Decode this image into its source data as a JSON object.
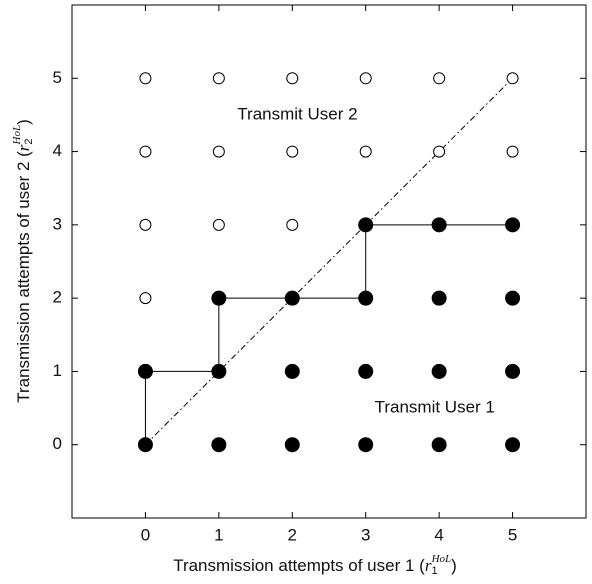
{
  "chart_data": {
    "type": "scatter",
    "xlabel": {
      "text": "Transmission attempts of user 1 (",
      "var": "r",
      "sub": "1",
      "sup": "HoL",
      "close": ")"
    },
    "ylabel": {
      "text": "Transmission attempts of user 2 (",
      "var": "r",
      "sub": "2",
      "sup": "HoL",
      "close": ")"
    },
    "xlim": [
      -1,
      6
    ],
    "ylim": [
      -1,
      6
    ],
    "xticks": [
      0,
      1,
      2,
      3,
      4,
      5
    ],
    "yticks": [
      0,
      1,
      2,
      3,
      4,
      5
    ],
    "series": [
      {
        "marker": "open",
        "color": "#000000",
        "x": [
          0,
          1,
          2,
          3,
          4,
          5,
          0,
          1,
          2,
          3,
          4,
          5,
          0,
          1,
          2,
          0
        ],
        "y": [
          5,
          5,
          5,
          5,
          5,
          5,
          4,
          4,
          4,
          4,
          4,
          4,
          3,
          3,
          3,
          2
        ]
      },
      {
        "marker": "filled",
        "color": "#000000",
        "x": [
          3,
          4,
          5,
          1,
          2,
          3,
          4,
          5,
          0,
          1,
          2,
          3,
          4,
          5,
          0,
          1,
          2,
          3,
          4,
          5
        ],
        "y": [
          3,
          3,
          3,
          2,
          2,
          2,
          2,
          2,
          1,
          1,
          1,
          1,
          1,
          1,
          0,
          0,
          0,
          0,
          0,
          0
        ]
      }
    ],
    "lines": [
      {
        "style": "dashdot",
        "x": [
          0,
          5
        ],
        "y": [
          0,
          5
        ]
      },
      {
        "style": "solid",
        "x": [
          0,
          0,
          1,
          1,
          3,
          3,
          5
        ],
        "y": [
          0,
          1,
          1,
          2,
          2,
          3,
          3
        ]
      }
    ],
    "annotations": [
      {
        "text": "Transmit  User 2",
        "x": 2.07,
        "y": 4.5
      },
      {
        "text": "Transmit  User 1",
        "x": 3.94,
        "y": 0.5
      }
    ]
  }
}
